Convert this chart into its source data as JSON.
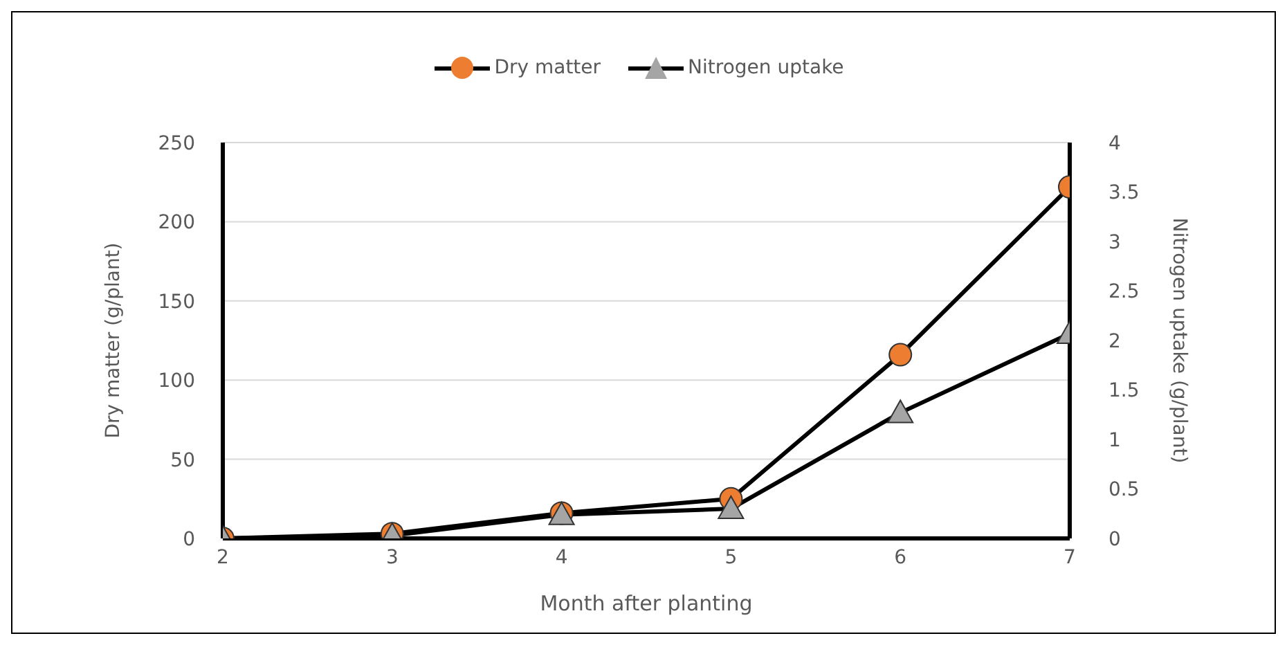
{
  "chart_data": {
    "type": "line",
    "xlabel": "Month after planting",
    "ylabel": "Dry matter (g/plant)",
    "y2label": "Nitrogen uptake (g/plant)",
    "x": [
      2,
      3,
      4,
      5,
      6,
      7
    ],
    "xlim": [
      2,
      7
    ],
    "xticks": [
      2,
      3,
      4,
      5,
      6,
      7
    ],
    "ylim": [
      0,
      250
    ],
    "yticks": [
      0,
      50,
      100,
      150,
      200,
      250
    ],
    "y2lim": [
      0,
      4
    ],
    "y2ticks": [
      0,
      0.5,
      1,
      1.5,
      2,
      2.5,
      3,
      3.5,
      4
    ],
    "grid": "y",
    "legend": "top",
    "line_style": "solid",
    "series": [
      {
        "name": "Dry matter",
        "color": "#ed7d31",
        "marker": "circle",
        "values": [
          0,
          3,
          16,
          25,
          116,
          222
        ]
      },
      {
        "name": "Nitrogen uptake",
        "color": "#a5a5a5",
        "marker": "triangle",
        "axis": "y2",
        "values": [
          0,
          0.03,
          0.24,
          0.3,
          1.27,
          2.07
        ]
      }
    ]
  }
}
